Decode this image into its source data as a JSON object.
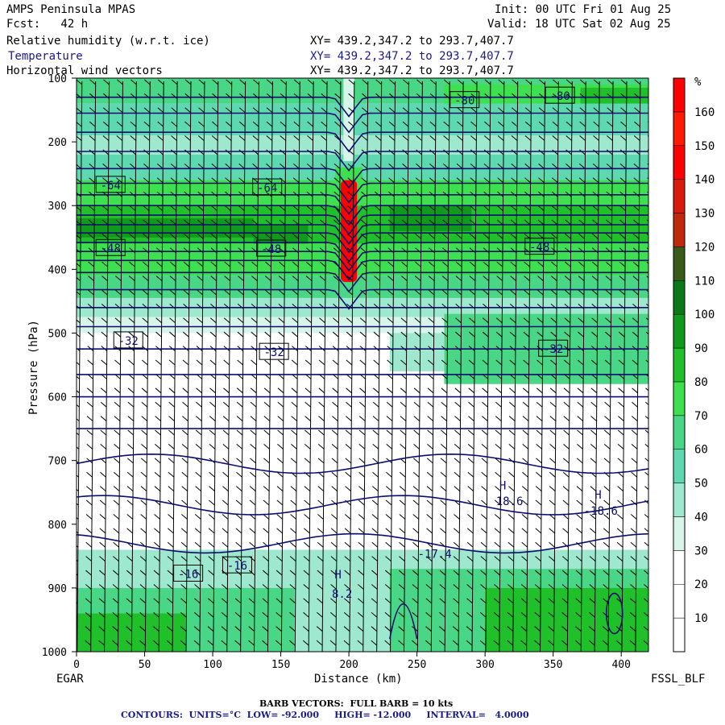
{
  "header": {
    "model": "AMPS Peninsula MPAS",
    "init": "Init: 00 UTC Fri 01 Aug 25",
    "fcst": "Fcst:   42 h",
    "valid": "Valid: 18 UTC Sat 02 Aug 25",
    "field1": "Relative humidity (w.r.t. ice)",
    "field2": "Temperature",
    "field3": "Horizontal wind vectors",
    "xy1": "XY= 439.2,347.2 to 293.7,407.7",
    "xy2": "XY= 439.2,347.2 to 293.7,407.7",
    "xy3": "XY= 439.2,347.2 to 293.7,407.7"
  },
  "footer": {
    "left": "EGAR",
    "right": "FSSL_BLF",
    "barb": "BARB VECTORS:  FULL BARB = 10 kts",
    "contours": "CONTOURS:  UNITS=°C  LOW= -92.000     HIGH= -12.000     INTERVAL=   4.0000"
  },
  "colors": {
    "contour": "#0d0d6e",
    "barb": "#000000",
    "bands": [
      "#ffffff",
      "#ffffff",
      "#ffffff",
      "#d8f5ea",
      "#9ee8cf",
      "#5ed8b0",
      "#49d686",
      "#3fe04f",
      "#1fc02a",
      "#0f9a1c",
      "#0a7a16",
      "#3a5a1a",
      "#c02a0a",
      "#d81b0b",
      "#ff0000",
      "#ff1a00",
      "#ff0000"
    ]
  },
  "chart_data": {
    "type": "heatmap",
    "xlabel": "Distance (km)",
    "ylabel": "Pressure (hPa)",
    "xlim": [
      0,
      420
    ],
    "ylim": [
      1000,
      100
    ],
    "xticks": [
      "0",
      "50",
      "100",
      "150",
      "200",
      "250",
      "300",
      "350",
      "400"
    ],
    "yticks": [
      "100",
      "200",
      "300",
      "400",
      "500",
      "600",
      "700",
      "800",
      "900",
      "1000"
    ],
    "colorbar": {
      "unit": "%",
      "levels": [
        "160",
        "150",
        "140",
        "130",
        "120",
        "110",
        "100",
        "90",
        "80",
        "70",
        "60",
        "50",
        "40",
        "30",
        "20",
        "10"
      ]
    },
    "temperature_labels": [
      {
        "text": "-80",
        "x": 285,
        "p": 135
      },
      {
        "text": "-80",
        "x": 355,
        "p": 128
      },
      {
        "text": "-64",
        "x": 25,
        "p": 268
      },
      {
        "text": "-64",
        "x": 140,
        "p": 272
      },
      {
        "text": "-48",
        "x": 25,
        "p": 367
      },
      {
        "text": "-48",
        "x": 143,
        "p": 368
      },
      {
        "text": "-48",
        "x": 340,
        "p": 365
      },
      {
        "text": "-32",
        "x": 38,
        "p": 512
      },
      {
        "text": "-32",
        "x": 145,
        "p": 530
      },
      {
        "text": "-32",
        "x": 350,
        "p": 525
      },
      {
        "text": "-16",
        "x": 82,
        "p": 878
      },
      {
        "text": "-16",
        "x": 118,
        "p": 865
      }
    ],
    "extrema": [
      {
        "text": "H",
        "x": 313,
        "p": 745
      },
      {
        "text": "18.6",
        "x": 318,
        "p": 770
      },
      {
        "text": "H",
        "x": 383,
        "p": 760
      },
      {
        "text": "-18.6",
        "x": 385,
        "p": 785
      },
      {
        "text": "H",
        "x": 192,
        "p": 885
      },
      {
        "text": "8.2",
        "x": 195,
        "p": 915
      },
      {
        "text": "-17.4",
        "x": 263,
        "p": 853
      }
    ],
    "isotherm_pressures": [
      130,
      155,
      185,
      215,
      242,
      265,
      283,
      300,
      315,
      330,
      343,
      358,
      372,
      386,
      405,
      432,
      460,
      490,
      525,
      565,
      600,
      650,
      705,
      770,
      830
    ]
  }
}
